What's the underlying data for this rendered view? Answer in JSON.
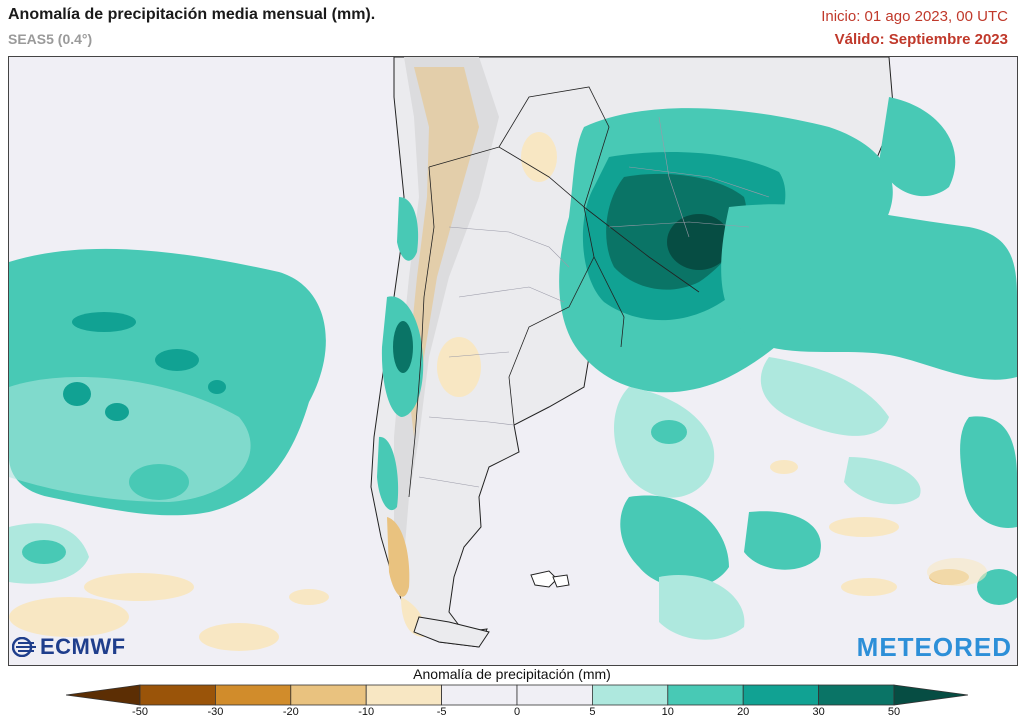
{
  "header": {
    "title": "Anomalía de precipitación media mensual (mm).",
    "model": "SEAS5 (0.4°)",
    "init": "Inicio: 01 ago 2023, 00 UTC",
    "valid": "Válido: Septiembre 2023"
  },
  "logos": {
    "left": "ECMWF",
    "right": "METEORED"
  },
  "colorbar": {
    "title": "Anomalía de precipitación (mm)",
    "ticks": [
      "-50",
      "-30",
      "-20",
      "-10",
      "-5",
      "0",
      "5",
      "10",
      "20",
      "30",
      "50"
    ],
    "colors": [
      "#5c2e04",
      "#9a5409",
      "#d18c2b",
      "#e9c27f",
      "#f8e7c3",
      "#f0eff5",
      "#f0eff5",
      "#aee8de",
      "#48c9b5",
      "#11a293",
      "#0a7466",
      "#064d43"
    ]
  },
  "map": {
    "background_color": "#f0eff5",
    "land_color": "#ebebee",
    "shading": {
      "wet_light": "#aee8de",
      "wet_medium": "#48c9b5",
      "wet_strong": "#11a293",
      "wet_stronger": "#0a7466",
      "wet_max": "#064d43",
      "dry_light": "#f8e7c3",
      "dry_medium": "#e9c27f"
    }
  }
}
